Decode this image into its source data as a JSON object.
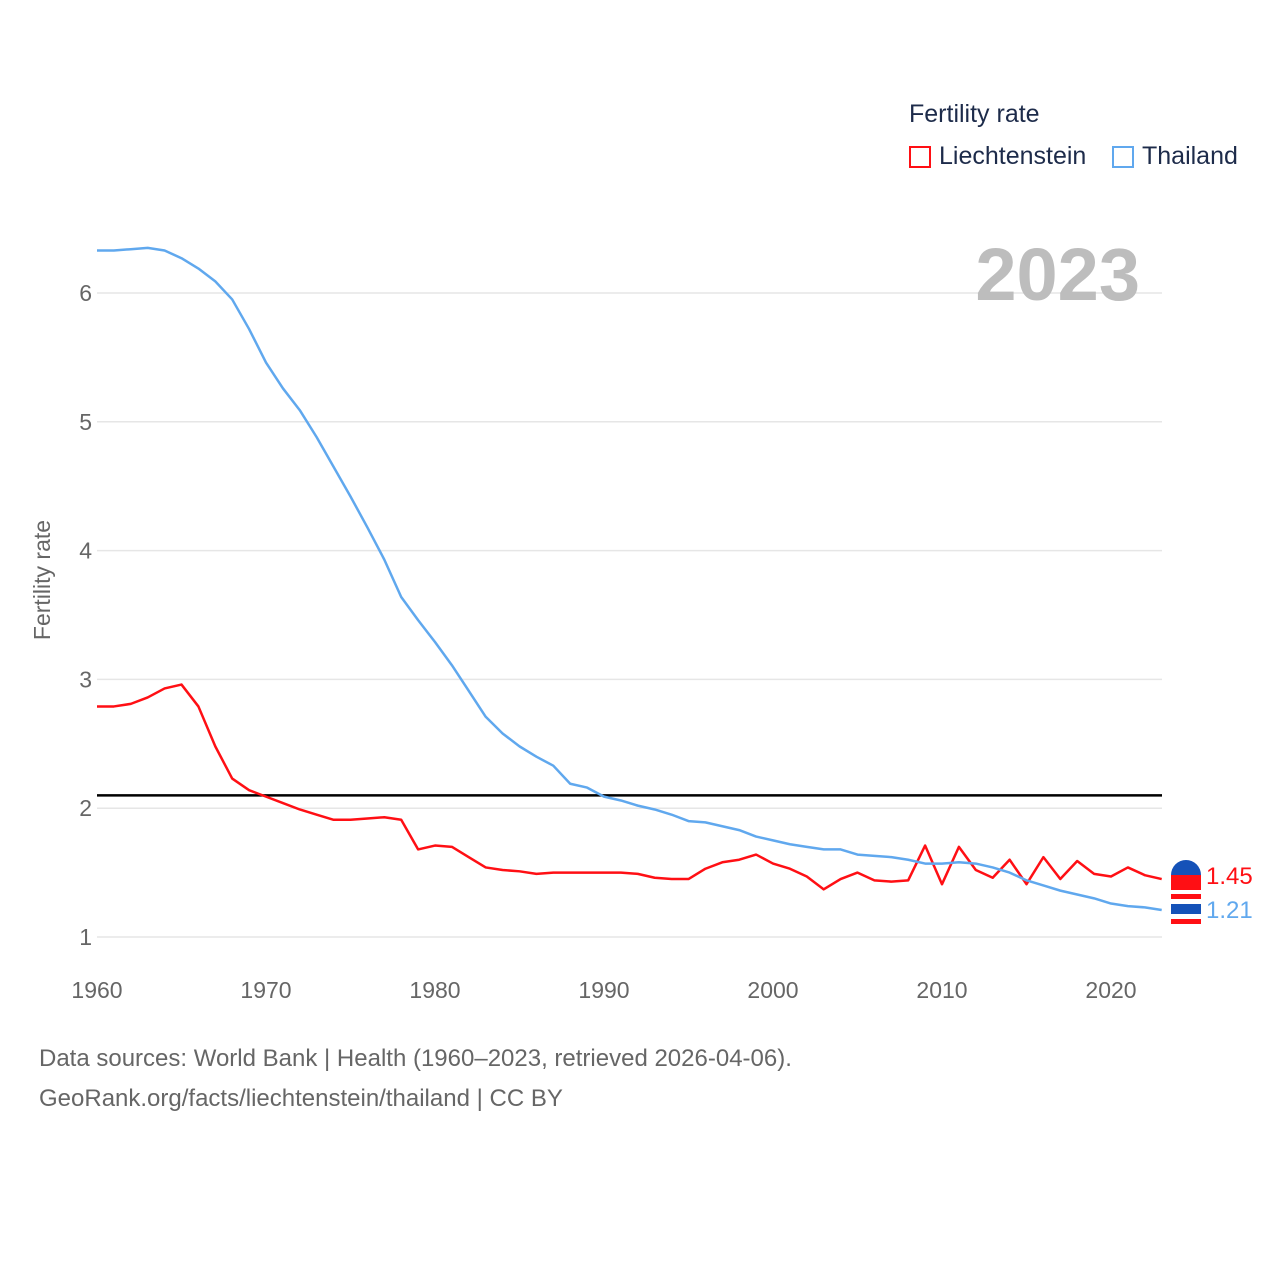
{
  "legend": {
    "title": "Fertility rate",
    "items": [
      {
        "label": "Liechtenstein",
        "color": "#ff0f14"
      },
      {
        "label": "Thailand",
        "color": "#60a8ee"
      }
    ]
  },
  "year_label": "2023",
  "footer": {
    "line1": "Data sources: World Bank | Health (1960–2023, retrieved 2026-04-06).",
    "line2": "GeoRank.org/facts/liechtenstein/thailand | CC BY"
  },
  "chart_data": {
    "type": "line",
    "ylabel": "Fertility rate",
    "xlim": [
      1960,
      2023
    ],
    "ylim": [
      0.8,
      6.5
    ],
    "xticks": [
      "1960",
      "1970",
      "1980",
      "1990",
      "2000",
      "2010",
      "2020"
    ],
    "yticks": [
      "1",
      "2",
      "3",
      "4",
      "5",
      "6"
    ],
    "reference_line": 2.1,
    "x_start": 1960,
    "series": [
      {
        "name": "Liechtenstein",
        "color": "#ff0f14",
        "end_label": "1.45",
        "values": [
          2.79,
          2.79,
          2.81,
          2.86,
          2.93,
          2.96,
          2.79,
          2.48,
          2.23,
          2.14,
          2.09,
          2.04,
          1.99,
          1.95,
          1.91,
          1.91,
          1.92,
          1.93,
          1.91,
          1.68,
          1.71,
          1.7,
          1.62,
          1.54,
          1.52,
          1.51,
          1.49,
          1.5,
          1.5,
          1.5,
          1.5,
          1.5,
          1.49,
          1.46,
          1.45,
          1.45,
          1.53,
          1.58,
          1.6,
          1.64,
          1.57,
          1.53,
          1.47,
          1.37,
          1.45,
          1.5,
          1.44,
          1.43,
          1.44,
          1.71,
          1.41,
          1.7,
          1.52,
          1.46,
          1.6,
          1.41,
          1.62,
          1.45,
          1.59,
          1.49,
          1.47,
          1.54,
          1.48,
          1.45
        ]
      },
      {
        "name": "Thailand",
        "color": "#60a8ee",
        "end_label": "1.21",
        "values": [
          6.33,
          6.33,
          6.34,
          6.35,
          6.33,
          6.27,
          6.19,
          6.09,
          5.95,
          5.72,
          5.46,
          5.26,
          5.09,
          4.88,
          4.65,
          4.42,
          4.18,
          3.93,
          3.64,
          3.46,
          3.29,
          3.11,
          2.91,
          2.71,
          2.58,
          2.48,
          2.4,
          2.33,
          2.19,
          2.16,
          2.09,
          2.06,
          2.02,
          1.99,
          1.95,
          1.9,
          1.89,
          1.86,
          1.83,
          1.78,
          1.75,
          1.72,
          1.7,
          1.68,
          1.68,
          1.64,
          1.63,
          1.62,
          1.6,
          1.57,
          1.57,
          1.58,
          1.57,
          1.54,
          1.5,
          1.44,
          1.4,
          1.36,
          1.33,
          1.3,
          1.26,
          1.24,
          1.23,
          1.21
        ]
      }
    ]
  }
}
